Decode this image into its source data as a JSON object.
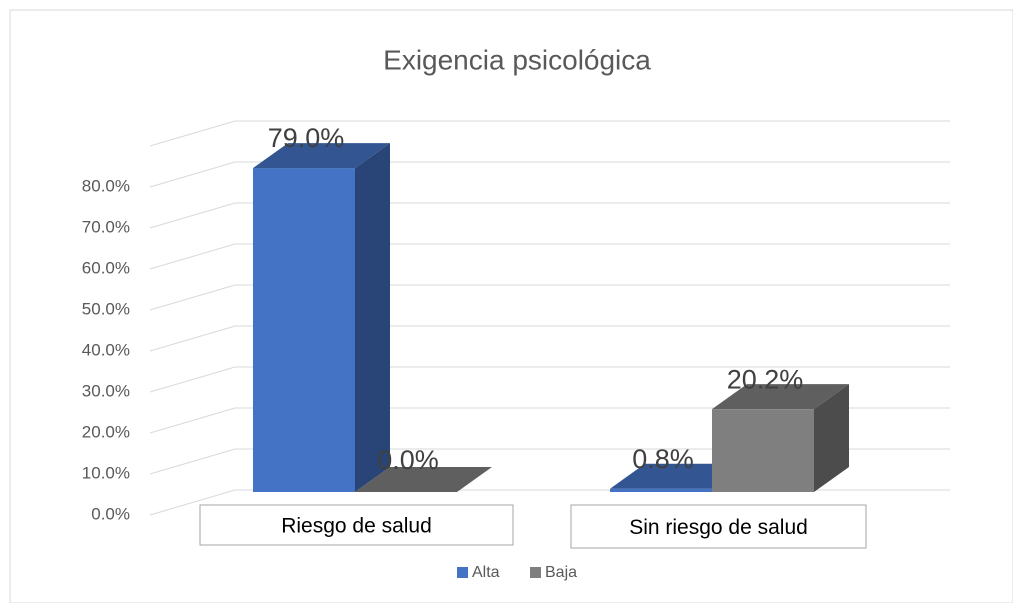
{
  "chart_data": {
    "type": "bar3d",
    "title": "Exigencia psicológica",
    "categories": [
      "Riesgo de salud",
      "Sin riesgo de salud"
    ],
    "series": [
      {
        "name": "Alta",
        "color": "#4472c4",
        "values": [
          79.0,
          0.8
        ],
        "value_labels": [
          "79.0%",
          "0.8%"
        ]
      },
      {
        "name": "Baja",
        "color": "#7f7f7f",
        "values": [
          0.0,
          20.2
        ],
        "value_labels": [
          "0.0%",
          "20.2%"
        ]
      }
    ],
    "ylim": [
      0,
      90
    ],
    "yticks": [
      {
        "value": 0,
        "label": "0.0%"
      },
      {
        "value": 10,
        "label": "10.0%"
      },
      {
        "value": 20,
        "label": "20.0%"
      },
      {
        "value": 30,
        "label": "30.0%"
      },
      {
        "value": 40,
        "label": "40.0%"
      },
      {
        "value": 50,
        "label": "50.0%"
      },
      {
        "value": 60,
        "label": "60.0%"
      },
      {
        "value": 70,
        "label": "70.0%"
      },
      {
        "value": 80,
        "label": "80.0%"
      }
    ],
    "grid": true,
    "legend": "bottom"
  }
}
